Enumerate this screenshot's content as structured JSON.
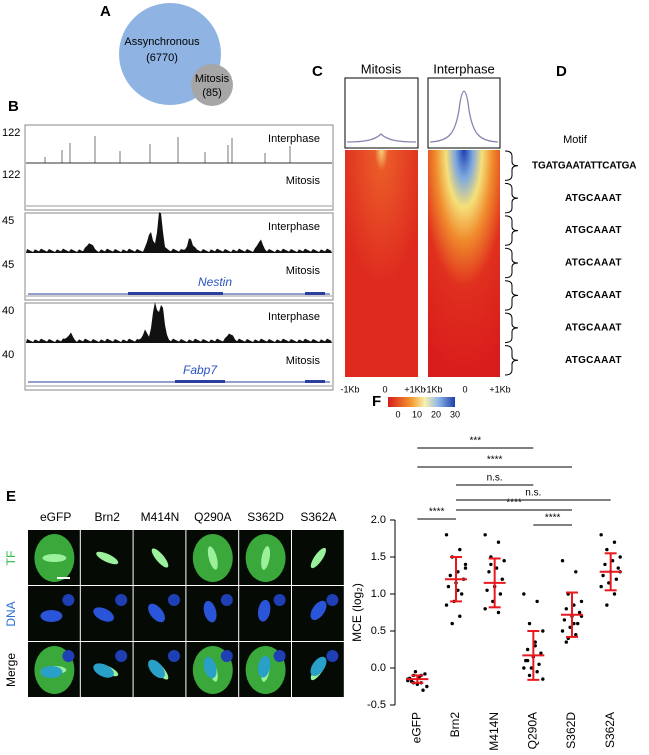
{
  "panel_a": {
    "label": "A",
    "sets": [
      {
        "name": "Assynchronous",
        "count": "(6770)"
      },
      {
        "name": "Mitosis",
        "count": "(85)"
      }
    ]
  },
  "panel_b": {
    "label": "B",
    "tracks": [
      {
        "scale": 122,
        "name": "Interphase"
      },
      {
        "scale": 122,
        "name": "Mitosis"
      },
      {
        "scale": 45,
        "name": "Interphase"
      },
      {
        "scale": 45,
        "name": "Mitosis"
      },
      {
        "scale": 40,
        "name": "Interphase"
      },
      {
        "scale": 40,
        "name": "Mitosis"
      }
    ],
    "genes": [
      "Nestin",
      "Fabp7"
    ]
  },
  "panel_c": {
    "label": "C",
    "columns": [
      "Mitosis",
      "Interphase"
    ],
    "x_labels": [
      "-1Kb",
      "0",
      "+1Kb"
    ],
    "colorbar_ticks": [
      0,
      10,
      20,
      30
    ]
  },
  "panel_d": {
    "label": "D",
    "title": "Motif",
    "motifs": [
      "TGATGAATATTCATGA",
      "ATGCAAAT",
      "ATGCAAAT",
      "ATGCAAAT",
      "ATGCAAAT",
      "ATGCAAAT",
      "ATGCAAAT"
    ]
  },
  "panel_e": {
    "label": "E",
    "columns": [
      "eGFP",
      "Brn2",
      "M414N",
      "Q290A",
      "S362D",
      "S362A"
    ],
    "rows": [
      "TF",
      "DNA",
      "Merge"
    ]
  },
  "panel_f": {
    "label": "F"
  },
  "chart_data": {
    "type": "dotplot",
    "ylabel": "MCE (log₂)",
    "categories": [
      "eGFP",
      "Brn2",
      "M414N",
      "Q290A",
      "S362D",
      "S362A"
    ],
    "points": [
      [
        -0.15,
        -0.1,
        -0.2,
        -0.25,
        -0.12,
        -0.18,
        -0.08,
        -0.22,
        -0.14,
        -0.3,
        -0.05,
        -0.17,
        -0.2,
        -0.1
      ],
      [
        1.8,
        1.6,
        1.5,
        1.4,
        1.3,
        1.25,
        1.2,
        1.15,
        1.1,
        1.0,
        0.9,
        0.85,
        0.7,
        0.6,
        1.35,
        1.05
      ],
      [
        1.8,
        1.7,
        1.5,
        1.45,
        1.35,
        1.3,
        1.2,
        1.1,
        1.05,
        1.0,
        0.9,
        0.8,
        0.75,
        1.4
      ],
      [
        1.0,
        0.9,
        0.6,
        0.5,
        0.35,
        0.25,
        0.2,
        0.15,
        0.1,
        0.05,
        0.0,
        0.0,
        -0.05,
        -0.1,
        -0.15,
        0.3,
        0.1
      ],
      [
        1.45,
        1.3,
        1.0,
        0.9,
        0.85,
        0.8,
        0.75,
        0.7,
        0.65,
        0.6,
        0.55,
        0.5,
        0.45,
        0.4,
        0.7,
        0.6,
        0.35
      ],
      [
        1.8,
        1.7,
        1.6,
        1.5,
        1.45,
        1.4,
        1.35,
        1.3,
        1.25,
        1.2,
        1.15,
        1.1,
        1.0,
        0.85,
        1.3
      ]
    ],
    "means": [
      -0.15,
      1.2,
      1.15,
      0.17,
      0.72,
      1.3
    ],
    "errors": [
      0.05,
      0.3,
      0.33,
      0.33,
      0.3,
      0.25
    ],
    "point_color": "#000000",
    "bar_color": "#e8191e",
    "ylim": [
      -0.5,
      2
    ],
    "yticks": [
      -0.5,
      {
        "value": 0,
        "label": "0.0"
      },
      0.5,
      {
        "value": 1,
        "label": "1.0"
      },
      1.5,
      {
        "value": 2,
        "label": "2.0"
      }
    ],
    "comparisons": [
      {
        "between": [
          0,
          3
        ],
        "label": "***"
      },
      {
        "between": [
          0,
          4
        ],
        "label": "****"
      },
      {
        "between": [
          1,
          3
        ],
        "label": "n.s."
      },
      {
        "between": [
          1,
          5
        ],
        "label": "n.s."
      },
      {
        "between": [
          0,
          1
        ],
        "label": "****"
      },
      {
        "between": [
          1,
          4
        ],
        "label": "****"
      },
      {
        "between": [
          3,
          4
        ],
        "label": "****"
      }
    ]
  }
}
